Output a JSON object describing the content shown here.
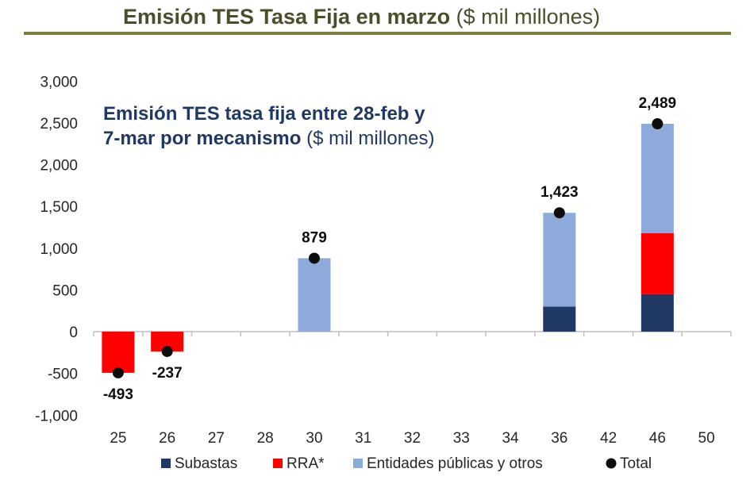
{
  "header": {
    "title_bold": "Emisión TES Tasa Fija en marzo",
    "title_unit": "($ mil millones)"
  },
  "colors": {
    "header_text": "#4d4d2b",
    "rule": "#7b7c3d",
    "subastas": "#1f3864",
    "rra": "#ff0000",
    "entidades": "#8eaadb",
    "total": "#0d0d0d",
    "inner_title": "#1f3864"
  },
  "chart_data": {
    "type": "bar",
    "stacked": true,
    "title_line1": "Emisión TES tasa fija entre 28-feb y",
    "title_line2_bold": "7-mar por mecanismo",
    "title_line2_unit": "($ mil millones)",
    "categories": [
      "25",
      "26",
      "27",
      "28",
      "30",
      "31",
      "32",
      "33",
      "34",
      "36",
      "42",
      "46",
      "50"
    ],
    "ylim": [
      -1000,
      3000
    ],
    "yticks": [
      -1000,
      -500,
      0,
      500,
      1000,
      1500,
      2000,
      2500,
      3000
    ],
    "ytick_labels": [
      "-1,000",
      "-500",
      "0",
      "500",
      "1,000",
      "1,500",
      "2,000",
      "2,500",
      "3,000"
    ],
    "series": [
      {
        "name": "Subastas",
        "color": "#1f3864",
        "values": [
          0,
          0,
          0,
          0,
          0,
          0,
          0,
          0,
          0,
          300,
          0,
          450,
          0
        ]
      },
      {
        "name": "RRA*",
        "color": "#ff0000",
        "values": [
          -493,
          -237,
          0,
          0,
          0,
          0,
          0,
          0,
          0,
          0,
          0,
          730,
          0
        ]
      },
      {
        "name": "Entidades públicas y otros",
        "color": "#8eaadb",
        "values": [
          0,
          0,
          0,
          0,
          879,
          0,
          0,
          0,
          0,
          1123,
          0,
          1309,
          0
        ]
      }
    ],
    "total": {
      "name": "Total",
      "values": [
        -493,
        -237,
        null,
        null,
        879,
        null,
        null,
        null,
        null,
        1423,
        null,
        2489,
        null
      ],
      "labels": [
        "-493",
        "-237",
        null,
        null,
        "879",
        null,
        null,
        null,
        null,
        "1,423",
        null,
        "2,489",
        null
      ]
    },
    "legend": [
      "Subastas",
      "RRA*",
      "Entidades públicas y otros",
      "Total"
    ],
    "legend_position": "bottom",
    "grid": false
  }
}
